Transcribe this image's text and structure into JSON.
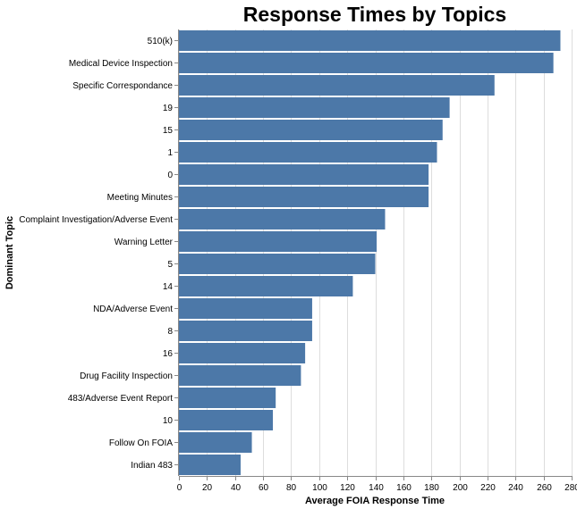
{
  "chart_data": {
    "type": "bar",
    "orientation": "horizontal",
    "title": "Response Times by Topics",
    "xlabel": "Average FOIA Response Time",
    "ylabel": "Dominant Topic",
    "xlim": [
      0,
      280
    ],
    "xticks": [
      0,
      20,
      40,
      60,
      80,
      100,
      120,
      140,
      160,
      180,
      200,
      220,
      240,
      260,
      280
    ],
    "grid": true,
    "bar_color": "#4c78a8",
    "categories": [
      "510(k)",
      "Medical Device Inspection",
      "Specific Correspondance",
      "19",
      "15",
      "1",
      "0",
      "Meeting Minutes",
      "Complaint Investigation/Adverse Event",
      "Warning Letter",
      "5",
      "14",
      "NDA/Adverse Event",
      "8",
      "16",
      "Drug Facility Inspection",
      "483/Adverse Event Report",
      "10",
      "Follow On FOIA",
      "Indian 483"
    ],
    "values": [
      272,
      267,
      225,
      193,
      188,
      184,
      178,
      178,
      147,
      141,
      140,
      124,
      95,
      95,
      90,
      87,
      69,
      67,
      52,
      44
    ]
  }
}
